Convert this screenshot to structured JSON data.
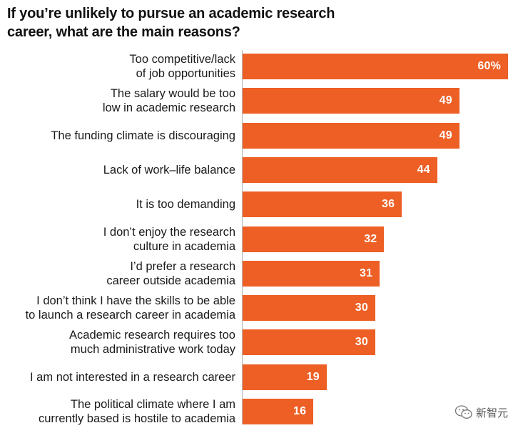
{
  "chart_data": {
    "type": "bar",
    "orientation": "horizontal",
    "title": "If you’re unlikely to pursue an academic research career, what are the main reasons?",
    "categories": [
      [
        "Too competitive/lack",
        "of job opportunities"
      ],
      [
        "The salary would be too",
        "low in academic research"
      ],
      [
        "The funding climate is discouraging"
      ],
      [
        "Lack of work–life balance"
      ],
      [
        "It is too demanding"
      ],
      [
        "I don’t enjoy the research",
        "culture in academia"
      ],
      [
        "I’d prefer a research",
        "career outside academia"
      ],
      [
        "I don’t think I have the skills to be able",
        "to launch a research career in academia"
      ],
      [
        "Academic research requires too",
        "much administrative work today"
      ],
      [
        "I am not interested in a research career"
      ],
      [
        "The political climate where I am",
        "currently based is hostile to academia"
      ]
    ],
    "values": [
      60,
      49,
      49,
      44,
      36,
      32,
      31,
      30,
      30,
      19,
      16
    ],
    "value_labels": [
      "60%",
      "49",
      "49",
      "44",
      "36",
      "32",
      "31",
      "30",
      "30",
      "19",
      "16"
    ],
    "unit": "%",
    "xlim": [
      0,
      60
    ],
    "bar_color": "#ed5f24",
    "grid": false
  },
  "watermark": {
    "text": "新智元",
    "icon": "wechat-icon"
  }
}
